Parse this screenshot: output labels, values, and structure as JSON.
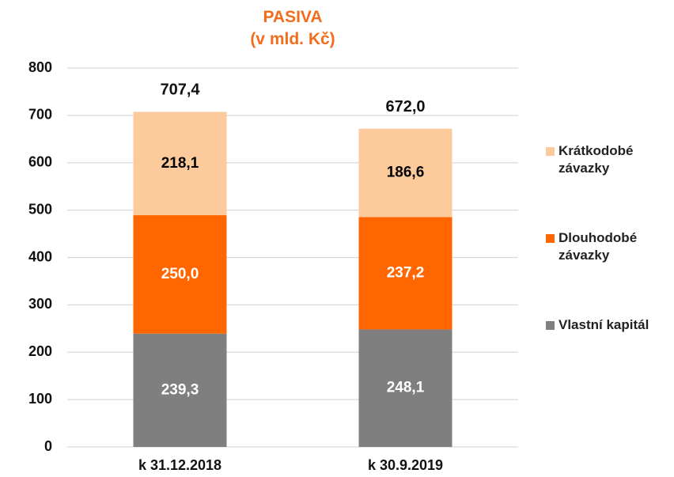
{
  "chart_data": {
    "type": "stacked_bar",
    "title": "PASIVA",
    "subtitle": "(v mld. Kč)",
    "categories": [
      "k 31.12.2018",
      "k 30.9.2019"
    ],
    "series": [
      {
        "name": "Vlastní kapitál",
        "color": "#7f7f7f",
        "label_color": "#ffffff",
        "values": [
          239.3,
          248.1
        ],
        "value_labels": [
          "239,3",
          "248,1"
        ]
      },
      {
        "name": "Dlouhodobé závazky",
        "color": "#ff6600",
        "label_color": "#ffffff",
        "values": [
          250.0,
          237.2
        ],
        "value_labels": [
          "250,0",
          "237,2"
        ]
      },
      {
        "name": "Krátkodobé závazky",
        "color": "#fdca9b",
        "label_color": "#000000",
        "values": [
          218.1,
          186.6
        ],
        "value_labels": [
          "218,1",
          "186,6"
        ]
      }
    ],
    "totals": [
      707.4,
      672.0
    ],
    "total_labels": [
      "707,4",
      "672,0"
    ],
    "ylim": [
      0,
      800
    ],
    "yticks": [
      0,
      100,
      200,
      300,
      400,
      500,
      600,
      700,
      800
    ],
    "grid": true,
    "legend": "right"
  }
}
